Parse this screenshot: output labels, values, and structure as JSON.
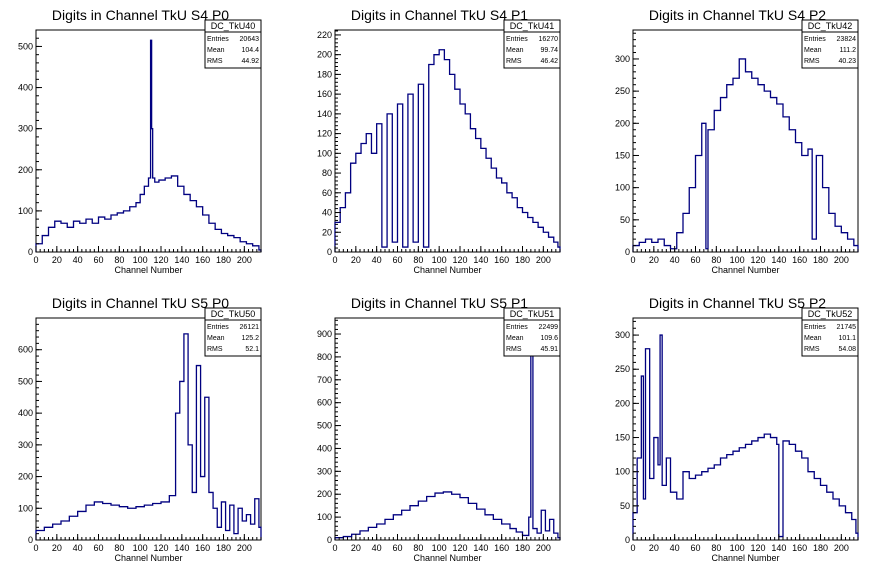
{
  "page": {
    "background": "#ffffff",
    "line_color": "#000080"
  },
  "chart_data": [
    {
      "type": "histogram",
      "title": "Digits in Channel TkU S4 P0",
      "xlabel": "Channel Number",
      "xlim": [
        0,
        216
      ],
      "ylim": [
        0,
        540
      ],
      "xticks": [
        0,
        20,
        40,
        60,
        80,
        100,
        120,
        140,
        160,
        180,
        200
      ],
      "yticks": [
        0,
        100,
        200,
        300,
        400,
        500
      ],
      "stats": {
        "name": "DC_TkU40",
        "entries_label": "Entries",
        "entries": "20643",
        "mean_label": "Mean",
        "mean": "104.4",
        "rms_label": "RMS",
        "rms": "44.92"
      },
      "x": [
        0,
        6,
        12,
        18,
        24,
        30,
        36,
        42,
        48,
        54,
        60,
        66,
        72,
        78,
        84,
        90,
        96,
        100,
        104,
        108,
        110,
        111,
        112,
        114,
        118,
        124,
        130,
        136,
        142,
        148,
        154,
        160,
        166,
        172,
        178,
        184,
        190,
        196,
        202,
        208,
        214
      ],
      "y": [
        20,
        40,
        60,
        75,
        70,
        60,
        75,
        70,
        80,
        70,
        85,
        80,
        90,
        95,
        100,
        110,
        120,
        140,
        160,
        180,
        515,
        300,
        180,
        170,
        175,
        180,
        185,
        160,
        140,
        125,
        110,
        90,
        70,
        55,
        45,
        40,
        35,
        25,
        20,
        15,
        5
      ]
    },
    {
      "type": "histogram",
      "title": "Digits in Channel TkU S4 P1",
      "xlabel": "Channel Number",
      "xlim": [
        0,
        216
      ],
      "ylim": [
        0,
        225
      ],
      "xticks": [
        0,
        20,
        40,
        60,
        80,
        100,
        120,
        140,
        160,
        180,
        200
      ],
      "yticks": [
        0,
        20,
        40,
        60,
        80,
        100,
        120,
        140,
        160,
        180,
        200,
        220
      ],
      "stats": {
        "name": "DC_TkU41",
        "entries_label": "Entries",
        "entries": "16270",
        "mean_label": "Mean",
        "mean": "99.74",
        "rms_label": "RMS",
        "rms": "46.42"
      },
      "x": [
        0,
        5,
        10,
        15,
        20,
        25,
        30,
        35,
        40,
        45,
        50,
        55,
        60,
        65,
        70,
        75,
        80,
        85,
        90,
        95,
        100,
        105,
        110,
        115,
        120,
        125,
        130,
        135,
        140,
        145,
        150,
        155,
        160,
        165,
        170,
        175,
        180,
        185,
        190,
        195,
        200,
        205,
        210,
        214
      ],
      "y": [
        30,
        45,
        60,
        90,
        100,
        110,
        120,
        100,
        130,
        5,
        140,
        10,
        150,
        5,
        160,
        10,
        170,
        5,
        190,
        200,
        205,
        195,
        180,
        165,
        150,
        140,
        125,
        115,
        105,
        95,
        85,
        75,
        70,
        60,
        55,
        45,
        40,
        35,
        30,
        25,
        20,
        15,
        10,
        5
      ]
    },
    {
      "type": "histogram",
      "title": "Digits in Channel TkU S4 P2",
      "xlabel": "Channel Number",
      "xlim": [
        0,
        216
      ],
      "ylim": [
        0,
        345
      ],
      "xticks": [
        0,
        20,
        40,
        60,
        80,
        100,
        120,
        140,
        160,
        180,
        200
      ],
      "yticks": [
        0,
        50,
        100,
        150,
        200,
        250,
        300
      ],
      "stats": {
        "name": "DC_TkU42",
        "entries_label": "Entries",
        "entries": "23824",
        "mean_label": "Mean",
        "mean": "111.2",
        "rms_label": "RMS",
        "rms": "40.23"
      },
      "x": [
        0,
        6,
        12,
        18,
        24,
        30,
        36,
        42,
        48,
        54,
        60,
        66,
        70,
        72,
        78,
        84,
        90,
        96,
        102,
        108,
        114,
        120,
        126,
        132,
        138,
        144,
        150,
        156,
        162,
        168,
        172,
        176,
        182,
        188,
        194,
        200,
        206,
        212
      ],
      "y": [
        10,
        15,
        20,
        15,
        20,
        10,
        5,
        30,
        60,
        100,
        150,
        200,
        5,
        190,
        220,
        240,
        260,
        270,
        300,
        280,
        270,
        260,
        250,
        240,
        230,
        210,
        190,
        170,
        150,
        160,
        20,
        150,
        100,
        60,
        40,
        30,
        20,
        10
      ]
    },
    {
      "type": "histogram",
      "title": "Digits in Channel TkU S5 P0",
      "xlabel": "Channel Number",
      "xlim": [
        0,
        216
      ],
      "ylim": [
        0,
        700
      ],
      "xticks": [
        0,
        20,
        40,
        60,
        80,
        100,
        120,
        140,
        160,
        180,
        200
      ],
      "yticks": [
        0,
        100,
        200,
        300,
        400,
        500,
        600
      ],
      "stats": {
        "name": "DC_TkU50",
        "entries_label": "Entries",
        "entries": "26121",
        "mean_label": "Mean",
        "mean": "125.2",
        "rms_label": "RMS",
        "rms": "52.1"
      },
      "x": [
        0,
        8,
        16,
        24,
        32,
        40,
        48,
        56,
        64,
        72,
        80,
        88,
        96,
        104,
        112,
        120,
        128,
        134,
        138,
        142,
        146,
        150,
        154,
        158,
        162,
        166,
        170,
        174,
        178,
        182,
        186,
        190,
        194,
        198,
        202,
        206,
        210,
        214
      ],
      "y": [
        30,
        40,
        50,
        60,
        75,
        90,
        110,
        120,
        115,
        110,
        105,
        100,
        105,
        110,
        115,
        120,
        140,
        400,
        500,
        650,
        300,
        150,
        550,
        200,
        450,
        150,
        100,
        40,
        120,
        30,
        110,
        20,
        100,
        60,
        80,
        50,
        130,
        40
      ]
    },
    {
      "type": "histogram",
      "title": "Digits in Channel TkU S5 P1",
      "xlabel": "Channel Number",
      "xlim": [
        0,
        216
      ],
      "ylim": [
        0,
        970
      ],
      "xticks": [
        0,
        20,
        40,
        60,
        80,
        100,
        120,
        140,
        160,
        180,
        200
      ],
      "yticks": [
        0,
        100,
        200,
        300,
        400,
        500,
        600,
        700,
        800,
        900
      ],
      "stats": {
        "name": "DC_TkU51",
        "entries_label": "Entries",
        "entries": "22499",
        "mean_label": "Mean",
        "mean": "109.6",
        "rms_label": "RMS",
        "rms": "45.91"
      },
      "x": [
        0,
        8,
        16,
        24,
        32,
        40,
        48,
        56,
        64,
        72,
        80,
        88,
        96,
        104,
        112,
        120,
        128,
        136,
        144,
        152,
        160,
        168,
        174,
        180,
        186,
        188,
        190,
        194,
        198,
        202,
        206,
        210,
        214
      ],
      "y": [
        10,
        15,
        25,
        40,
        55,
        70,
        90,
        110,
        130,
        150,
        170,
        190,
        205,
        210,
        200,
        185,
        160,
        135,
        110,
        90,
        70,
        50,
        35,
        20,
        100,
        900,
        50,
        30,
        130,
        40,
        90,
        30,
        10
      ]
    },
    {
      "type": "histogram",
      "title": "Digits in Channel TkU S5 P2",
      "xlabel": "Channel Number",
      "xlim": [
        0,
        216
      ],
      "ylim": [
        0,
        325
      ],
      "xticks": [
        0,
        20,
        40,
        60,
        80,
        100,
        120,
        140,
        160,
        180,
        200
      ],
      "yticks": [
        0,
        50,
        100,
        150,
        200,
        250,
        300
      ],
      "stats": {
        "name": "DC_TkU52",
        "entries_label": "Entries",
        "entries": "21745",
        "mean_label": "Mean",
        "mean": "101.1",
        "rms_label": "RMS",
        "rms": "54.08"
      },
      "x": [
        0,
        4,
        8,
        10,
        12,
        16,
        20,
        24,
        26,
        28,
        32,
        36,
        42,
        48,
        54,
        60,
        66,
        72,
        78,
        84,
        90,
        96,
        102,
        108,
        114,
        120,
        126,
        132,
        138,
        140,
        144,
        150,
        156,
        162,
        168,
        174,
        180,
        186,
        192,
        198,
        204,
        210,
        214
      ],
      "y": [
        40,
        120,
        240,
        60,
        280,
        90,
        150,
        110,
        300,
        80,
        120,
        70,
        60,
        100,
        90,
        95,
        100,
        105,
        110,
        120,
        125,
        130,
        135,
        140,
        145,
        150,
        155,
        150,
        140,
        5,
        145,
        140,
        130,
        120,
        100,
        90,
        80,
        70,
        60,
        50,
        40,
        30,
        10
      ]
    }
  ]
}
